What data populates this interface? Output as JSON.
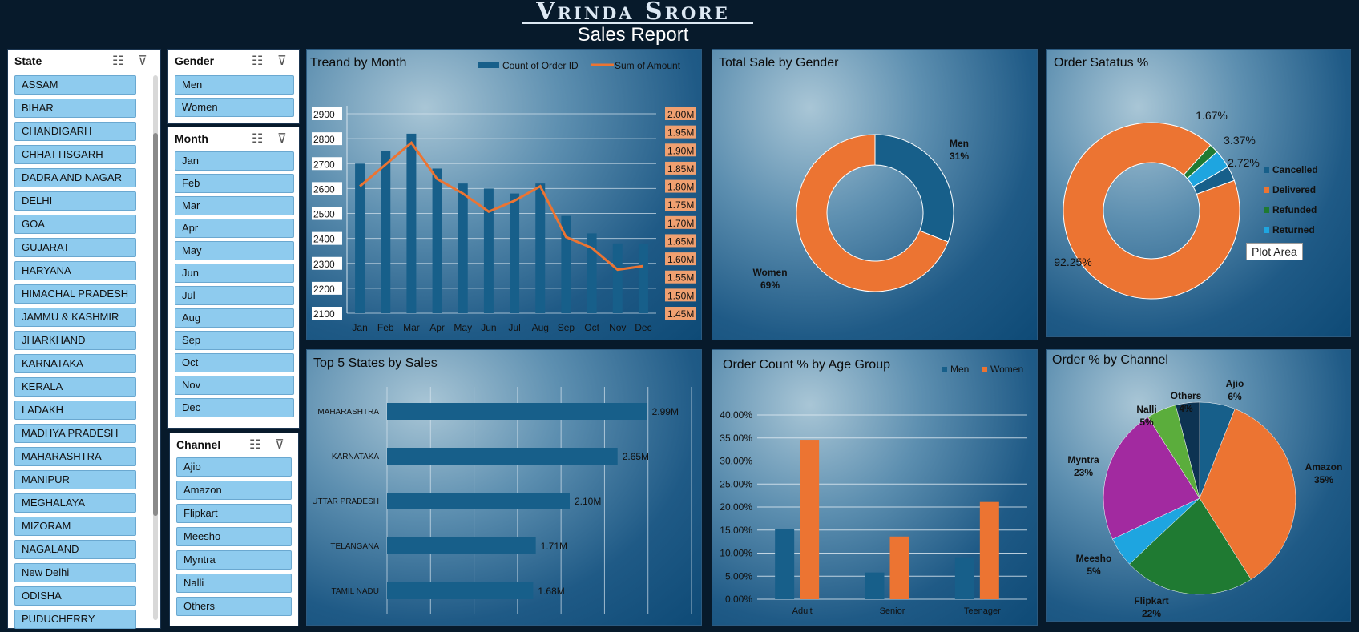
{
  "header": {
    "brand": "Vrinda Srore",
    "subtitle": "Sales Report"
  },
  "slicers": {
    "state": {
      "title": "State",
      "items": [
        "ASSAM",
        "BIHAR",
        "CHANDIGARH",
        "CHHATTISGARH",
        "DADRA AND NAGAR",
        "DELHI",
        "GOA",
        "GUJARAT",
        "HARYANA",
        "HIMACHAL PRADESH",
        "JAMMU & KASHMIR",
        "JHARKHAND",
        "KARNATAKA",
        "KERALA",
        "LADAKH",
        "MADHYA PRADESH",
        "MAHARASHTRA",
        "MANIPUR",
        "MEGHALAYA",
        "MIZORAM",
        "NAGALAND",
        "New Delhi",
        "ODISHA",
        "PUDUCHERRY"
      ]
    },
    "gender": {
      "title": "Gender",
      "items": [
        "Men",
        "Women"
      ]
    },
    "month": {
      "title": "Month",
      "items": [
        "Jan",
        "Feb",
        "Mar",
        "Apr",
        "May",
        "Jun",
        "Jul",
        "Aug",
        "Sep",
        "Oct",
        "Nov",
        "Dec"
      ]
    },
    "channel": {
      "title": "Channel",
      "items": [
        "Ajio",
        "Amazon",
        "Flipkart",
        "Meesho",
        "Myntra",
        "Nalli",
        "Others"
      ]
    }
  },
  "colors": {
    "blue": "#175f8a",
    "orange": "#ec7432",
    "green": "#1f7a32",
    "cyan": "#1ea5e0",
    "magenta": "#a22aa0",
    "lightgreen": "#5bad3c",
    "navy": "#0d3352"
  },
  "chart_data": [
    {
      "id": "trend",
      "type": "bar",
      "title": "Treand by Month",
      "categories": [
        "Jan",
        "Feb",
        "Mar",
        "Apr",
        "May",
        "Jun",
        "Jul",
        "Aug",
        "Sep",
        "Oct",
        "Nov",
        "Dec"
      ],
      "series": [
        {
          "name": "Count of Order ID",
          "type": "bar",
          "values": [
            2700,
            2750,
            2820,
            2680,
            2620,
            2600,
            2580,
            2620,
            2490,
            2420,
            2380,
            2380
          ]
        },
        {
          "name": "Sum of Amount",
          "type": "line",
          "values": [
            1.8,
            1.86,
            1.92,
            1.82,
            1.78,
            1.73,
            1.76,
            1.8,
            1.66,
            1.63,
            1.57,
            1.58
          ]
        }
      ],
      "y_ticks": [
        "2100",
        "2200",
        "2300",
        "2400",
        "2500",
        "2600",
        "2700",
        "2800",
        "2900"
      ],
      "y2_ticks": [
        "1.45M",
        "1.50M",
        "1.55M",
        "1.60M",
        "1.65M",
        "1.70M",
        "1.75M",
        "1.80M",
        "1.85M",
        "1.90M",
        "1.95M",
        "2.00M"
      ],
      "ylim": [
        2100,
        2900
      ],
      "y2lim": [
        1.45,
        2.0
      ],
      "legend": "top-right"
    },
    {
      "id": "gender",
      "type": "pie",
      "title": "Total Sale by Gender",
      "donut": true,
      "slices": [
        {
          "name": "Men",
          "value": 31,
          "label": "31%"
        },
        {
          "name": "Women",
          "value": 69,
          "label": "69%"
        }
      ]
    },
    {
      "id": "status",
      "type": "pie",
      "title": "Order Satatus  %",
      "donut": true,
      "slices": [
        {
          "name": "Cancelled",
          "value": 2.72,
          "label": "2.72%"
        },
        {
          "name": "Delivered",
          "value": 92.25,
          "label": "92.25%"
        },
        {
          "name": "Refunded",
          "value": 1.67,
          "label": "1.67%"
        },
        {
          "name": "Returned",
          "value": 3.37,
          "label": "3.37%"
        }
      ],
      "legend": "right",
      "tooltip": "Plot Area"
    },
    {
      "id": "states",
      "type": "bar",
      "orientation": "horizontal",
      "title": "Top 5 States by Sales",
      "categories": [
        "MAHARASHTRA",
        "KARNATAKA",
        "UTTAR PRADESH",
        "TELANGANA",
        "TAMIL NADU"
      ],
      "values": [
        2.99,
        2.65,
        2.1,
        1.71,
        1.68
      ],
      "labels": [
        "2.99M",
        "2.65M",
        "2.10M",
        "1.71M",
        "1.68M"
      ],
      "xlim": [
        0,
        3.5
      ]
    },
    {
      "id": "age",
      "type": "bar",
      "title": "Order Count % by Age Group",
      "categories": [
        "Adult",
        "Senior",
        "Teenager"
      ],
      "series": [
        {
          "name": "Men",
          "values": [
            15.3,
            5.8,
            9.1
          ]
        },
        {
          "name": "Women",
          "values": [
            34.6,
            13.6,
            21.1
          ]
        }
      ],
      "y_ticks": [
        "0.00%",
        "5.00%",
        "10.00%",
        "15.00%",
        "20.00%",
        "25.00%",
        "30.00%",
        "35.00%",
        "40.00%"
      ],
      "ylim": [
        0,
        40
      ],
      "legend": "top-right"
    },
    {
      "id": "channel",
      "type": "pie",
      "title": "Order % by Channel",
      "slices": [
        {
          "name": "Ajio",
          "value": 6,
          "label": "6%"
        },
        {
          "name": "Amazon",
          "value": 35,
          "label": "35%"
        },
        {
          "name": "Flipkart",
          "value": 22,
          "label": "22%"
        },
        {
          "name": "Meesho",
          "value": 5,
          "label": "5%"
        },
        {
          "name": "Myntra",
          "value": 23,
          "label": "23%"
        },
        {
          "name": "Nalli",
          "value": 5,
          "label": "5%"
        },
        {
          "name": "Others",
          "value": 4,
          "label": "4%"
        }
      ]
    }
  ]
}
